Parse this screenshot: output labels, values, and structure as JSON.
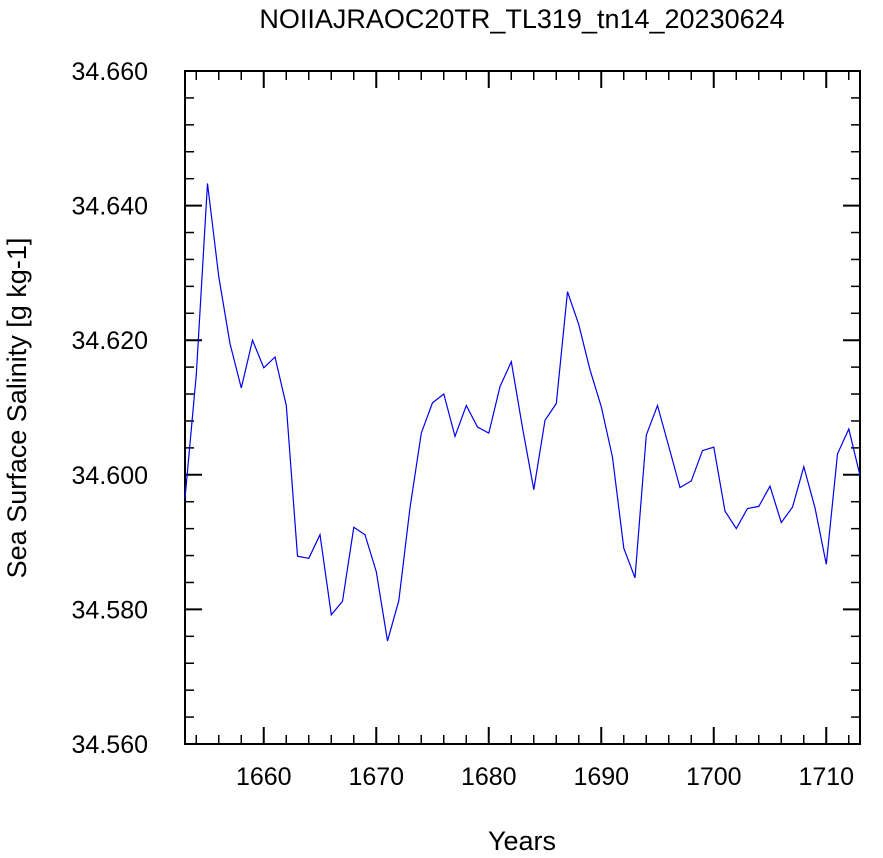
{
  "chart_data": {
    "type": "line",
    "title": "NOIIAJRAOC20TR_TL319_tn14_20230624",
    "xlabel": "Years",
    "ylabel": "Sea Surface Salinity [g kg-1]",
    "xlim": [
      1653,
      1713
    ],
    "ylim": [
      34.56,
      34.66
    ],
    "x_ticks": [
      1660,
      1670,
      1680,
      1690,
      1700,
      1710
    ],
    "x_tick_labels": [
      "1660",
      "1670",
      "1680",
      "1690",
      "1700",
      "1710"
    ],
    "y_ticks": [
      34.56,
      34.58,
      34.6,
      34.62,
      34.64,
      34.66
    ],
    "y_tick_labels": [
      "34.560",
      "34.580",
      "34.600",
      "34.620",
      "34.640",
      "34.660"
    ],
    "grid": false,
    "series_color": "#0000ee",
    "x": [
      1653,
      1654,
      1655,
      1656,
      1657,
      1658,
      1659,
      1660,
      1661,
      1662,
      1663,
      1664,
      1665,
      1666,
      1667,
      1668,
      1669,
      1670,
      1671,
      1672,
      1673,
      1674,
      1675,
      1676,
      1677,
      1678,
      1679,
      1680,
      1681,
      1682,
      1683,
      1684,
      1685,
      1686,
      1687,
      1688,
      1689,
      1690,
      1691,
      1692,
      1693,
      1694,
      1695,
      1696,
      1697,
      1698,
      1699,
      1700,
      1701,
      1702,
      1703,
      1704,
      1705,
      1706,
      1707,
      1708,
      1709,
      1710,
      1711,
      1712,
      1713
    ],
    "y": [
      34.5965,
      34.6149,
      34.6433,
      34.6294,
      34.6195,
      34.6129,
      34.62,
      34.6159,
      34.6175,
      34.6103,
      34.5879,
      34.5876,
      34.5911,
      34.5792,
      34.5812,
      34.5922,
      34.5911,
      34.5856,
      34.5753,
      34.5813,
      34.5951,
      34.6062,
      34.6107,
      34.612,
      34.6057,
      34.6103,
      34.6071,
      34.6062,
      34.6131,
      34.6168,
      34.607,
      34.5978,
      34.6081,
      34.6106,
      34.6272,
      34.6223,
      34.6156,
      34.6101,
      34.6026,
      34.5891,
      34.5847,
      34.6059,
      34.6103,
      34.6042,
      34.5981,
      34.5991,
      34.6036,
      34.6041,
      34.5946,
      34.592,
      34.595,
      34.5953,
      34.5983,
      34.5929,
      34.5952,
      34.6012,
      34.5951,
      34.5867,
      34.6031,
      34.6068,
      34.5999
    ]
  }
}
